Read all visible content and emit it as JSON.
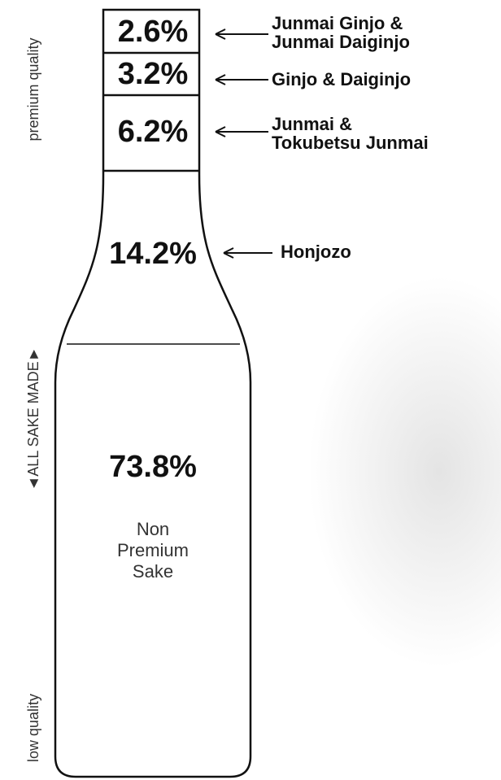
{
  "side_labels": {
    "top": "premium quality",
    "middle": "◄ALL SAKE MADE►",
    "bottom": "low quality"
  },
  "segments": [
    {
      "percent": "2.6%",
      "label": [
        "Junmai Ginjo &",
        "Junmai Daiginjo"
      ]
    },
    {
      "percent": "3.2%",
      "label": [
        "Ginjo & Daiginjo"
      ]
    },
    {
      "percent": "6.2%",
      "label": [
        "Junmai &",
        "Tokubetsu Junmai"
      ]
    },
    {
      "percent": "14.2%",
      "label": [
        "Honjozo"
      ]
    },
    {
      "percent": "73.8%",
      "description": [
        "Non",
        "Premium",
        "Sake"
      ]
    }
  ]
}
